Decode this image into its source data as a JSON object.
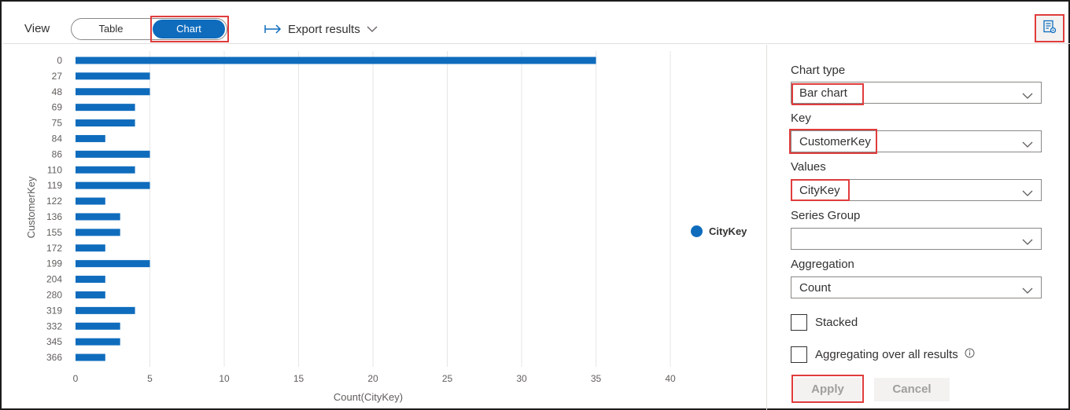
{
  "toolbar": {
    "view_label": "View",
    "tab_table": "Table",
    "tab_chart": "Chart",
    "export_label": "Export results"
  },
  "chart_data": {
    "type": "bar",
    "orientation": "horizontal",
    "categories": [
      "0",
      "27",
      "48",
      "69",
      "75",
      "84",
      "86",
      "110",
      "119",
      "122",
      "136",
      "155",
      "172",
      "199",
      "204",
      "280",
      "319",
      "332",
      "345",
      "366"
    ],
    "values": [
      35,
      5,
      5,
      4,
      4,
      2,
      5,
      4,
      5,
      2,
      3,
      3,
      2,
      5,
      2,
      2,
      4,
      3,
      3,
      2
    ],
    "xlabel": "Count(CityKey)",
    "ylabel": "CustomerKey",
    "xlim": [
      0,
      40
    ],
    "xticks": [
      0,
      5,
      10,
      15,
      20,
      25,
      30,
      35,
      40
    ],
    "grid": "vertical",
    "legend_position": "right",
    "series": [
      {
        "name": "CityKey",
        "color": "#0f6cbd"
      }
    ]
  },
  "panel": {
    "chart_type_label": "Chart type",
    "chart_type_value": "Bar chart",
    "key_label": "Key",
    "key_value": "CustomerKey",
    "values_label": "Values",
    "values_value": "CityKey",
    "series_group_label": "Series Group",
    "series_group_value": "",
    "aggregation_label": "Aggregation",
    "aggregation_value": "Count",
    "stacked_label": "Stacked",
    "aggregating_label": "Aggregating over all results",
    "apply_label": "Apply",
    "cancel_label": "Cancel"
  },
  "colors": {
    "accent": "#0f6cbd",
    "highlight": "#e03c3c"
  }
}
